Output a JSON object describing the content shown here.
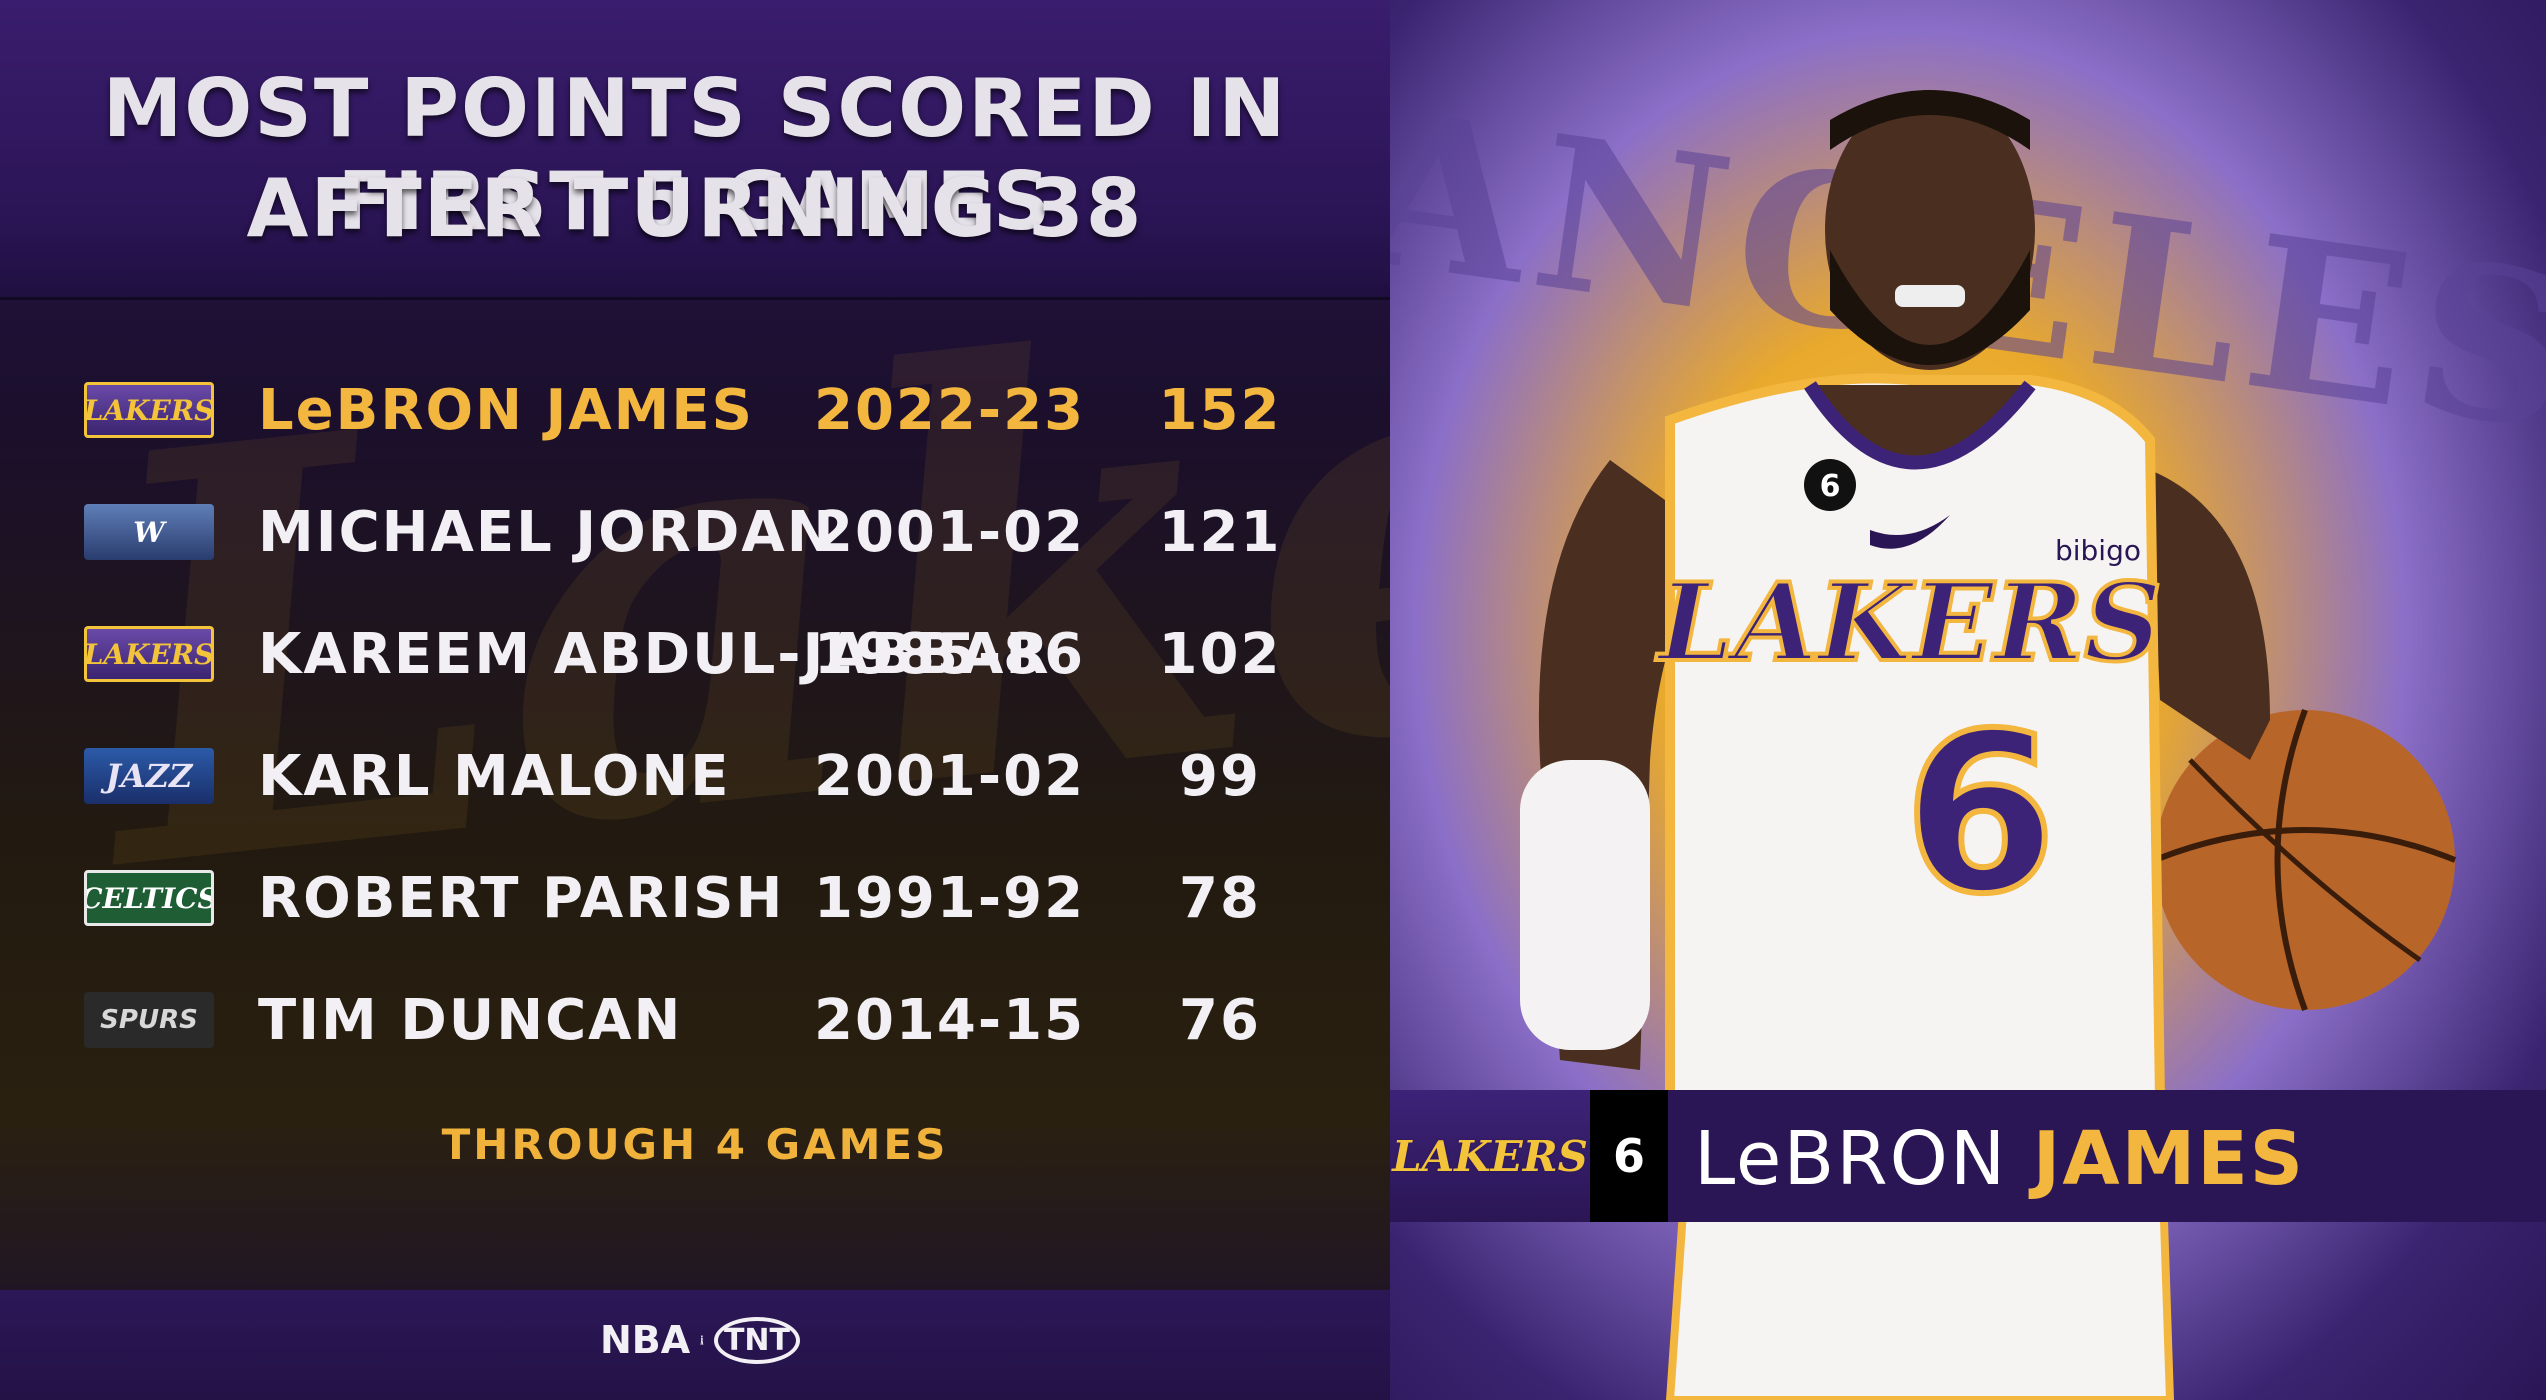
{
  "title": {
    "line1": "MOST POINTS SCORED IN FIRST 5 GAMES",
    "line2": "AFTER TURNING 38"
  },
  "rows": [
    {
      "logo": "LAKERS",
      "name": "LeBRON JAMES",
      "season": "2022-23",
      "points": "152"
    },
    {
      "logo": "W",
      "name": "MICHAEL JORDAN",
      "season": "2001-02",
      "points": "121"
    },
    {
      "logo": "LAKERS",
      "name": "KAREEM ABDUL-JABBAR",
      "season": "1985-86",
      "points": "102"
    },
    {
      "logo": "JAZZ",
      "name": "KARL MALONE",
      "season": "2001-02",
      "points": "99"
    },
    {
      "logo": "CELTICS",
      "name": "ROBERT PARISH",
      "season": "1991-92",
      "points": "78"
    },
    {
      "logo": "SPURS",
      "name": "TIM DUNCAN",
      "season": "2014-15",
      "points": "76"
    }
  ],
  "footnote": "THROUGH 4 GAMES",
  "branding": {
    "nba": "NBA",
    "tnt": "TNT"
  },
  "nameplate": {
    "team_logo": "LAKERS",
    "number": "6",
    "first_name": "LeBRON",
    "last_name": "JAMES"
  },
  "jersey": {
    "team": "LAKERS",
    "number": "6",
    "patch_number": "6",
    "sponsor": "bibigo"
  },
  "colors": {
    "lakers_purple": "#2b1655",
    "lakers_gold": "#f3b63f",
    "text_white": "#f2f0f4"
  }
}
